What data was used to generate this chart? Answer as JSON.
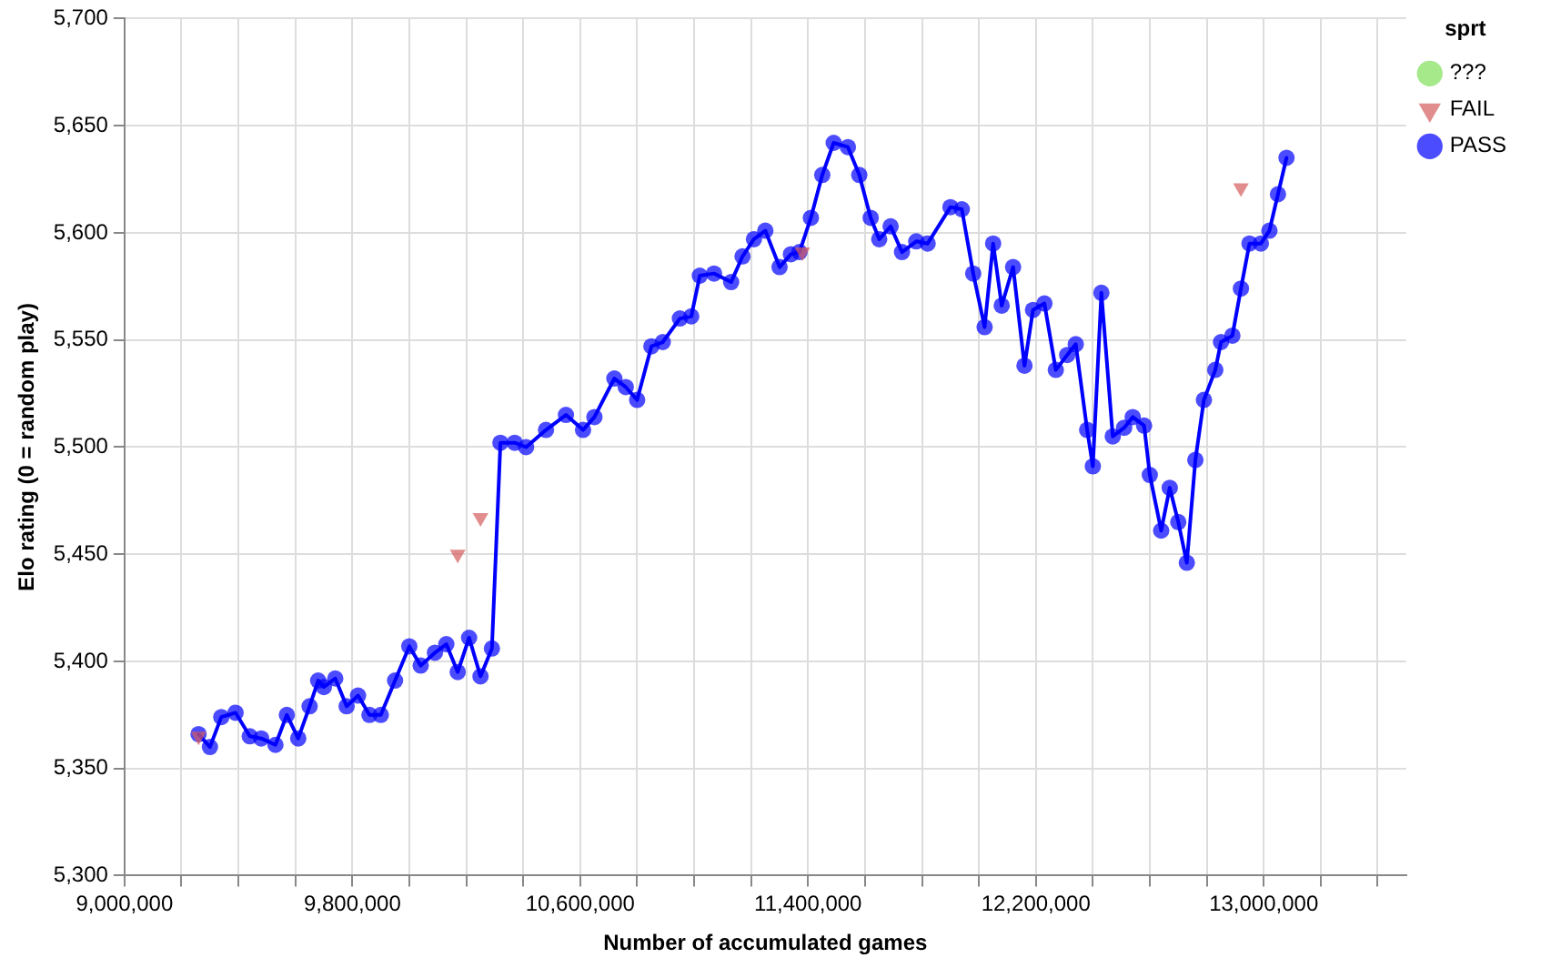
{
  "chart_data": {
    "type": "scatter",
    "xlabel": "Number of accumulated games",
    "ylabel": "Elo rating (0 = random play)",
    "legend_title": "sprt",
    "legend": "top right",
    "grid": true,
    "marker": "circle",
    "xlim": [
      9000000,
      13500000
    ],
    "xticks": [
      {
        "value": 9000000,
        "label": "9,000,000"
      },
      {
        "value": 9200000,
        "label": null
      },
      {
        "value": 9400000,
        "label": null
      },
      {
        "value": 9600000,
        "label": null
      },
      {
        "value": 9800000,
        "label": "9,800,000"
      },
      {
        "value": 10000000,
        "label": null
      },
      {
        "value": 10200000,
        "label": null
      },
      {
        "value": 10400000,
        "label": null
      },
      {
        "value": 10600000,
        "label": "10,600,000"
      },
      {
        "value": 10800000,
        "label": null
      },
      {
        "value": 11000000,
        "label": null
      },
      {
        "value": 11200000,
        "label": null
      },
      {
        "value": 11400000,
        "label": "11,400,000"
      },
      {
        "value": 11600000,
        "label": null
      },
      {
        "value": 11800000,
        "label": null
      },
      {
        "value": 12000000,
        "label": null
      },
      {
        "value": 12200000,
        "label": "12,200,000"
      },
      {
        "value": 12400000,
        "label": null
      },
      {
        "value": 12600000,
        "label": null
      },
      {
        "value": 12800000,
        "label": null
      },
      {
        "value": 13000000,
        "label": "13,000,000"
      },
      {
        "value": 13200000,
        "label": null
      },
      {
        "value": 13400000,
        "label": null
      }
    ],
    "ylim": [
      5300,
      5700
    ],
    "yticks": [
      {
        "value": 5300,
        "label": "5,300"
      },
      {
        "value": 5350,
        "label": "5,350"
      },
      {
        "value": 5400,
        "label": "5,400"
      },
      {
        "value": 5450,
        "label": "5,450"
      },
      {
        "value": 5500,
        "label": "5,500"
      },
      {
        "value": 5550,
        "label": "5,550"
      },
      {
        "value": 5600,
        "label": "5,600"
      },
      {
        "value": 5650,
        "label": "5,650"
      },
      {
        "value": 5700,
        "label": "5,700"
      }
    ],
    "series": [
      {
        "name": "???",
        "color": "#80e05a"
      },
      {
        "name": "FAIL",
        "color": "#d45c5c",
        "marker": "triangle",
        "x": [
          9260000,
          10170000,
          10250000,
          11380000,
          12920000
        ],
        "values": [
          5365,
          5450,
          5467,
          5591,
          5621
        ]
      },
      {
        "name": "PASS",
        "color": "#0000ff",
        "type": "line",
        "x": [
          9260000,
          9300000,
          9340000,
          9390000,
          9440000,
          9480000,
          9530000,
          9570000,
          9610000,
          9650000,
          9680000,
          9700000,
          9740000,
          9780000,
          9820000,
          9860000,
          9900000,
          9950000,
          10000000,
          10040000,
          10090000,
          10130000,
          10170000,
          10210000,
          10250000,
          10290000,
          10320000,
          10370000,
          10410000,
          10480000,
          10550000,
          10610000,
          10650000,
          10720000,
          10760000,
          10800000,
          10850000,
          10890000,
          10950000,
          10990000,
          11020000,
          11070000,
          11130000,
          11170000,
          11210000,
          11250000,
          11300000,
          11340000,
          11370000,
          11410000,
          11450000,
          11490000,
          11540000,
          11580000,
          11620000,
          11650000,
          11690000,
          11730000,
          11780000,
          11820000,
          11900000,
          11940000,
          11980000,
          12020000,
          12050000,
          12080000,
          12120000,
          12160000,
          12190000,
          12230000,
          12270000,
          12310000,
          12340000,
          12380000,
          12400000,
          12430000,
          12470000,
          12510000,
          12540000,
          12580000,
          12600000,
          12640000,
          12670000,
          12700000,
          12730000,
          12760000,
          12790000,
          12830000,
          12850000,
          12890000,
          12920000,
          12950000,
          12990000,
          13020000,
          13050000,
          13080000
        ],
        "values": [
          5366,
          5360,
          5374,
          5376,
          5365,
          5364,
          5361,
          5375,
          5364,
          5379,
          5391,
          5388,
          5392,
          5379,
          5384,
          5375,
          5375,
          5391,
          5407,
          5398,
          5404,
          5408,
          5395,
          5411,
          5393,
          5406,
          5502,
          5502,
          5500,
          5508,
          5515,
          5508,
          5514,
          5532,
          5528,
          5522,
          5547,
          5549,
          5560,
          5561,
          5580,
          5581,
          5577,
          5589,
          5597,
          5601,
          5584,
          5590,
          5591,
          5607,
          5627,
          5642,
          5640,
          5627,
          5607,
          5597,
          5603,
          5591,
          5596,
          5595,
          5612,
          5611,
          5581,
          5556,
          5595,
          5566,
          5584,
          5538,
          5564,
          5567,
          5536,
          5543,
          5548,
          5508,
          5491,
          5572,
          5505,
          5509,
          5514,
          5510,
          5487,
          5461,
          5481,
          5465,
          5446,
          5494,
          5522,
          5536,
          5549,
          5552,
          5574,
          5595,
          5595,
          5601,
          5618,
          5635
        ]
      }
    ]
  }
}
